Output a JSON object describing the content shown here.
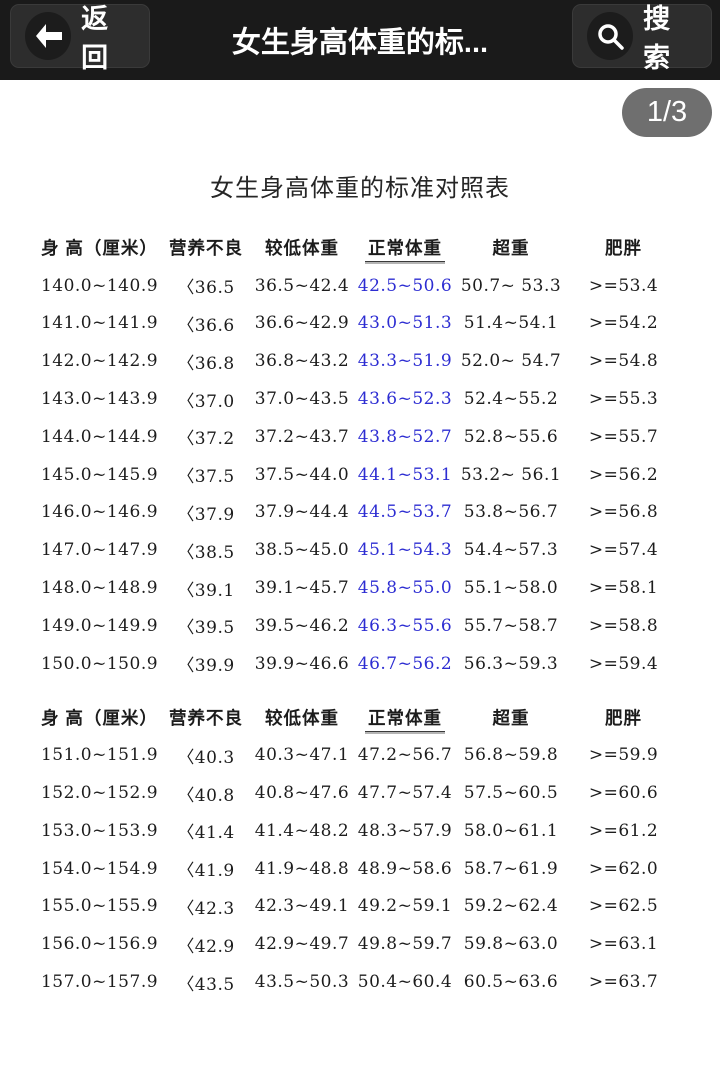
{
  "topbar": {
    "back_label": "返回",
    "title": "女生身高体重的标...",
    "search_label": "搜索"
  },
  "page_indicator": "1/3",
  "document": {
    "title": "女生身高体重的标准对照表",
    "columns": [
      "身 高（厘米）",
      "营养不良",
      "较低体重",
      "正常体重",
      "超重",
      "肥胖"
    ],
    "sections": [
      {
        "normal_color": "#2d2dd2",
        "rows": [
          [
            "140.0~140.9",
            "〈36.5",
            "36.5~42.4",
            "42.5~50.6",
            "50.7~ 53.3",
            ">=53.4"
          ],
          [
            "141.0~141.9",
            "〈36.6",
            "36.6~42.9",
            "43.0~51.3",
            "51.4~54.1",
            ">=54.2"
          ],
          [
            "142.0~142.9",
            "〈36.8",
            "36.8~43.2",
            "43.3~51.9",
            "52.0~ 54.7",
            ">=54.8"
          ],
          [
            "143.0~143.9",
            "〈37.0",
            "37.0~43.5",
            "43.6~52.3",
            "52.4~55.2",
            ">=55.3"
          ],
          [
            "144.0~144.9",
            "〈37.2",
            "37.2~43.7",
            "43.8~52.7",
            "52.8~55.6",
            ">=55.7"
          ],
          [
            "145.0~145.9",
            "〈37.5",
            "37.5~44.0",
            "44.1~53.1",
            "53.2~ 56.1",
            ">=56.2"
          ],
          [
            "146.0~146.9",
            "〈37.9",
            "37.9~44.4",
            "44.5~53.7",
            "53.8~56.7",
            ">=56.8"
          ],
          [
            "147.0~147.9",
            "〈38.5",
            "38.5~45.0",
            "45.1~54.3",
            "54.4~57.3",
            ">=57.4"
          ],
          [
            "148.0~148.9",
            "〈39.1",
            "39.1~45.7",
            "45.8~55.0",
            "55.1~58.0",
            ">=58.1"
          ],
          [
            "149.0~149.9",
            "〈39.5",
            "39.5~46.2",
            "46.3~55.6",
            "55.7~58.7",
            ">=58.8"
          ],
          [
            "150.0~150.9",
            "〈39.9",
            "39.9~46.6",
            "46.7~56.2",
            "56.3~59.3",
            ">=59.4"
          ]
        ]
      },
      {
        "normal_color": "#1c1c1c",
        "rows": [
          [
            "151.0~151.9",
            "〈40.3",
            "40.3~47.1",
            "47.2~56.7",
            "56.8~59.8",
            ">=59.9"
          ],
          [
            "152.0~152.9",
            "〈40.8",
            "40.8~47.6",
            "47.7~57.4",
            "57.5~60.5",
            ">=60.6"
          ],
          [
            "153.0~153.9",
            "〈41.4",
            "41.4~48.2",
            "48.3~57.9",
            "58.0~61.1",
            ">=61.2"
          ],
          [
            "154.0~154.9",
            "〈41.9",
            "41.9~48.8",
            "48.9~58.6",
            "58.7~61.9",
            ">=62.0"
          ],
          [
            "155.0~155.9",
            "〈42.3",
            "42.3~49.1",
            "49.2~59.1",
            "59.2~62.4",
            ">=62.5"
          ],
          [
            "156.0~156.9",
            "〈42.9",
            "42.9~49.7",
            "49.8~59.7",
            "59.8~63.0",
            ">=63.1"
          ],
          [
            "157.0~157.9",
            "〈43.5",
            "43.5~50.3",
            "50.4~60.4",
            "60.5~63.6",
            ">=63.7"
          ]
        ]
      }
    ]
  },
  "colors": {
    "topbar_bg": "#1a1a1a",
    "pill_bg": "#6f6f6f",
    "normal_weight_blue": "#2d2dd2"
  }
}
